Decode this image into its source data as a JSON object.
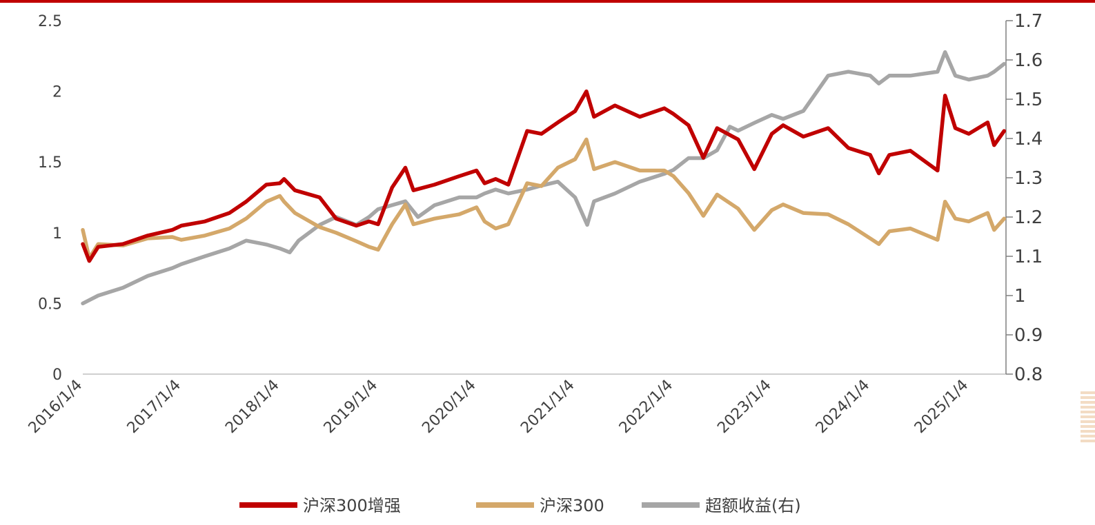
{
  "chart_data": {
    "type": "line",
    "title": "",
    "xlabel": "",
    "ylabel": "",
    "y_left_range": [
      0,
      2.5
    ],
    "y_right_range": [
      0.8,
      1.7
    ],
    "x_tick_labels": [
      "2016/1/4",
      "2017/1/4",
      "2018/1/4",
      "2019/1/4",
      "2020/1/4",
      "2021/1/4",
      "2022/1/4",
      "2023/1/4",
      "2024/1/4",
      "2025/1/4"
    ],
    "y_left_tick_labels": [
      "0",
      "0.5",
      "1",
      "1.5",
      "2",
      "2.5"
    ],
    "y_right_tick_labels": [
      "0.8",
      "0.9",
      "1",
      "1.1",
      "1.2",
      "1.3",
      "1.4",
      "1.5",
      "1.6",
      "1.7"
    ],
    "grid": false,
    "legend_position": "bottom",
    "series": [
      {
        "name": "沪深300增强",
        "axis": "left",
        "color": "#c00000",
        "points": [
          [
            "2016-01-04",
            0.92
          ],
          [
            "2016-01-28",
            0.8
          ],
          [
            "2016-03-01",
            0.9
          ],
          [
            "2016-06-01",
            0.92
          ],
          [
            "2016-09-01",
            0.98
          ],
          [
            "2016-12-01",
            1.02
          ],
          [
            "2017-01-04",
            1.05
          ],
          [
            "2017-04-01",
            1.08
          ],
          [
            "2017-07-01",
            1.14
          ],
          [
            "2017-09-01",
            1.22
          ],
          [
            "2017-11-15",
            1.34
          ],
          [
            "2018-01-04",
            1.35
          ],
          [
            "2018-01-20",
            1.38
          ],
          [
            "2018-03-01",
            1.3
          ],
          [
            "2018-06-01",
            1.25
          ],
          [
            "2018-08-01",
            1.1
          ],
          [
            "2018-10-15",
            1.05
          ],
          [
            "2018-12-01",
            1.08
          ],
          [
            "2019-01-04",
            1.06
          ],
          [
            "2019-02-25",
            1.32
          ],
          [
            "2019-04-15",
            1.46
          ],
          [
            "2019-05-15",
            1.3
          ],
          [
            "2019-08-01",
            1.34
          ],
          [
            "2019-11-01",
            1.4
          ],
          [
            "2020-01-04",
            1.44
          ],
          [
            "2020-02-03",
            1.35
          ],
          [
            "2020-03-15",
            1.38
          ],
          [
            "2020-05-01",
            1.34
          ],
          [
            "2020-07-10",
            1.72
          ],
          [
            "2020-09-01",
            1.7
          ],
          [
            "2020-11-01",
            1.78
          ],
          [
            "2021-01-04",
            1.86
          ],
          [
            "2021-02-15",
            2.0
          ],
          [
            "2021-03-15",
            1.82
          ],
          [
            "2021-06-01",
            1.9
          ],
          [
            "2021-09-01",
            1.82
          ],
          [
            "2021-12-01",
            1.88
          ],
          [
            "2022-01-04",
            1.84
          ],
          [
            "2022-03-01",
            1.76
          ],
          [
            "2022-04-25",
            1.53
          ],
          [
            "2022-06-15",
            1.74
          ],
          [
            "2022-09-01",
            1.66
          ],
          [
            "2022-10-31",
            1.45
          ],
          [
            "2023-01-04",
            1.7
          ],
          [
            "2023-02-15",
            1.76
          ],
          [
            "2023-05-01",
            1.68
          ],
          [
            "2023-08-01",
            1.74
          ],
          [
            "2023-10-15",
            1.6
          ],
          [
            "2024-01-04",
            1.55
          ],
          [
            "2024-02-05",
            1.42
          ],
          [
            "2024-03-15",
            1.55
          ],
          [
            "2024-06-01",
            1.58
          ],
          [
            "2024-09-10",
            1.44
          ],
          [
            "2024-10-08",
            1.97
          ],
          [
            "2024-11-15",
            1.74
          ],
          [
            "2025-01-04",
            1.7
          ],
          [
            "2025-03-15",
            1.78
          ],
          [
            "2025-04-08",
            1.62
          ],
          [
            "2025-05-15",
            1.72
          ]
        ]
      },
      {
        "name": "沪深300",
        "axis": "left",
        "color": "#d4a86a",
        "points": [
          [
            "2016-01-04",
            1.02
          ],
          [
            "2016-01-28",
            0.82
          ],
          [
            "2016-03-01",
            0.92
          ],
          [
            "2016-06-01",
            0.91
          ],
          [
            "2016-09-01",
            0.96
          ],
          [
            "2016-12-01",
            0.97
          ],
          [
            "2017-01-04",
            0.95
          ],
          [
            "2017-04-01",
            0.98
          ],
          [
            "2017-07-01",
            1.03
          ],
          [
            "2017-09-01",
            1.1
          ],
          [
            "2017-11-15",
            1.22
          ],
          [
            "2018-01-04",
            1.26
          ],
          [
            "2018-01-20",
            1.22
          ],
          [
            "2018-03-01",
            1.14
          ],
          [
            "2018-06-01",
            1.04
          ],
          [
            "2018-08-01",
            1.0
          ],
          [
            "2018-10-15",
            0.94
          ],
          [
            "2018-12-01",
            0.9
          ],
          [
            "2019-01-04",
            0.88
          ],
          [
            "2019-02-25",
            1.06
          ],
          [
            "2019-04-15",
            1.2
          ],
          [
            "2019-05-15",
            1.06
          ],
          [
            "2019-08-01",
            1.1
          ],
          [
            "2019-11-01",
            1.13
          ],
          [
            "2020-01-04",
            1.18
          ],
          [
            "2020-02-03",
            1.08
          ],
          [
            "2020-03-15",
            1.03
          ],
          [
            "2020-05-01",
            1.06
          ],
          [
            "2020-07-10",
            1.35
          ],
          [
            "2020-09-01",
            1.33
          ],
          [
            "2020-11-01",
            1.46
          ],
          [
            "2021-01-04",
            1.52
          ],
          [
            "2021-02-15",
            1.66
          ],
          [
            "2021-03-15",
            1.45
          ],
          [
            "2021-06-01",
            1.5
          ],
          [
            "2021-09-01",
            1.44
          ],
          [
            "2021-12-01",
            1.44
          ],
          [
            "2022-01-04",
            1.4
          ],
          [
            "2022-03-01",
            1.28
          ],
          [
            "2022-04-25",
            1.12
          ],
          [
            "2022-06-15",
            1.27
          ],
          [
            "2022-09-01",
            1.17
          ],
          [
            "2022-10-31",
            1.02
          ],
          [
            "2023-01-04",
            1.16
          ],
          [
            "2023-02-15",
            1.2
          ],
          [
            "2023-05-01",
            1.14
          ],
          [
            "2023-08-01",
            1.13
          ],
          [
            "2023-10-15",
            1.06
          ],
          [
            "2024-01-04",
            0.96
          ],
          [
            "2024-02-05",
            0.92
          ],
          [
            "2024-03-15",
            1.01
          ],
          [
            "2024-06-01",
            1.03
          ],
          [
            "2024-09-10",
            0.95
          ],
          [
            "2024-10-08",
            1.22
          ],
          [
            "2024-11-15",
            1.1
          ],
          [
            "2025-01-04",
            1.08
          ],
          [
            "2025-03-15",
            1.14
          ],
          [
            "2025-04-08",
            1.02
          ],
          [
            "2025-05-15",
            1.1
          ]
        ]
      },
      {
        "name": "超额收益(右)",
        "axis": "right",
        "color": "#a6a6a6",
        "points": [
          [
            "2016-01-04",
            0.98
          ],
          [
            "2016-03-01",
            1.0
          ],
          [
            "2016-06-01",
            1.02
          ],
          [
            "2016-09-01",
            1.05
          ],
          [
            "2016-12-01",
            1.07
          ],
          [
            "2017-01-04",
            1.08
          ],
          [
            "2017-04-01",
            1.1
          ],
          [
            "2017-07-01",
            1.12
          ],
          [
            "2017-09-01",
            1.14
          ],
          [
            "2017-11-15",
            1.13
          ],
          [
            "2018-01-04",
            1.12
          ],
          [
            "2018-02-10",
            1.11
          ],
          [
            "2018-03-15",
            1.14
          ],
          [
            "2018-06-01",
            1.18
          ],
          [
            "2018-08-01",
            1.2
          ],
          [
            "2018-10-15",
            1.18
          ],
          [
            "2018-12-01",
            1.2
          ],
          [
            "2019-01-04",
            1.22
          ],
          [
            "2019-04-15",
            1.24
          ],
          [
            "2019-06-01",
            1.2
          ],
          [
            "2019-08-01",
            1.23
          ],
          [
            "2019-11-01",
            1.25
          ],
          [
            "2020-01-04",
            1.25
          ],
          [
            "2020-02-03",
            1.26
          ],
          [
            "2020-03-15",
            1.27
          ],
          [
            "2020-05-01",
            1.26
          ],
          [
            "2020-07-10",
            1.27
          ],
          [
            "2020-09-01",
            1.28
          ],
          [
            "2020-11-01",
            1.29
          ],
          [
            "2021-01-04",
            1.25
          ],
          [
            "2021-02-18",
            1.18
          ],
          [
            "2021-03-15",
            1.24
          ],
          [
            "2021-06-01",
            1.26
          ],
          [
            "2021-09-01",
            1.29
          ],
          [
            "2021-12-01",
            1.31
          ],
          [
            "2022-01-04",
            1.32
          ],
          [
            "2022-03-01",
            1.35
          ],
          [
            "2022-04-25",
            1.35
          ],
          [
            "2022-06-15",
            1.37
          ],
          [
            "2022-08-01",
            1.43
          ],
          [
            "2022-09-01",
            1.42
          ],
          [
            "2022-11-01",
            1.44
          ],
          [
            "2023-01-04",
            1.46
          ],
          [
            "2023-02-15",
            1.45
          ],
          [
            "2023-05-01",
            1.47
          ],
          [
            "2023-08-01",
            1.56
          ],
          [
            "2023-10-15",
            1.57
          ],
          [
            "2024-01-04",
            1.56
          ],
          [
            "2024-02-05",
            1.54
          ],
          [
            "2024-03-15",
            1.56
          ],
          [
            "2024-06-01",
            1.56
          ],
          [
            "2024-09-10",
            1.57
          ],
          [
            "2024-10-08",
            1.62
          ],
          [
            "2024-11-15",
            1.56
          ],
          [
            "2025-01-04",
            1.55
          ],
          [
            "2025-03-15",
            1.56
          ],
          [
            "2025-04-08",
            1.57
          ],
          [
            "2025-05-15",
            1.59
          ]
        ]
      }
    ]
  }
}
